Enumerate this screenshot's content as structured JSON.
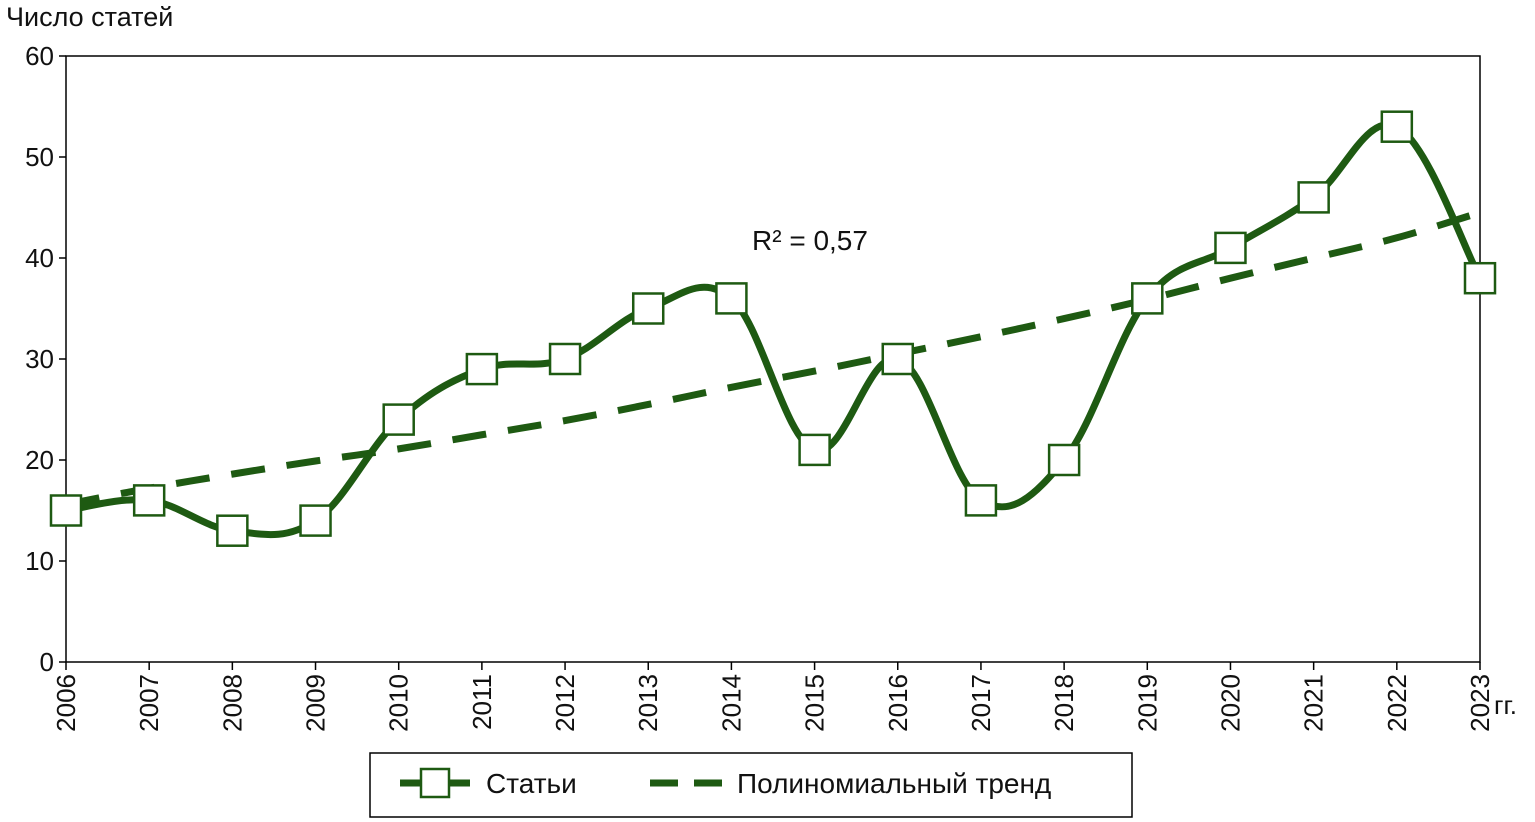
{
  "chart_data": {
    "type": "line",
    "ylabel": "Число статей",
    "xunit": "гг.",
    "ylim": [
      0,
      60
    ],
    "yticks": [
      0,
      10,
      20,
      30,
      40,
      50,
      60
    ],
    "categories": [
      "2006",
      "2007",
      "2008",
      "2009",
      "2010",
      "2011",
      "2012",
      "2013",
      "2014",
      "2015",
      "2016",
      "2017",
      "2018",
      "2019",
      "2020",
      "2021",
      "2022",
      "2023"
    ],
    "series": [
      {
        "name": "Статьи",
        "style": "solid-square-markers",
        "values": [
          15,
          16,
          13,
          14,
          24,
          29,
          30,
          35,
          36,
          21,
          30,
          16,
          20,
          36,
          41,
          46,
          53,
          38
        ]
      },
      {
        "name": "Полиномиальный тренд",
        "style": "dashed",
        "values": [
          15.6,
          17.2,
          18.6,
          19.9,
          21.1,
          22.5,
          23.9,
          25.5,
          27.2,
          28.8,
          30.5,
          32.2,
          34.0,
          35.9,
          38.0,
          40.0,
          42.0,
          44.5
        ]
      }
    ],
    "annotation": "R² = 0,57",
    "legend_position": "bottom-center",
    "grid": false,
    "color": "#1e5a12"
  }
}
